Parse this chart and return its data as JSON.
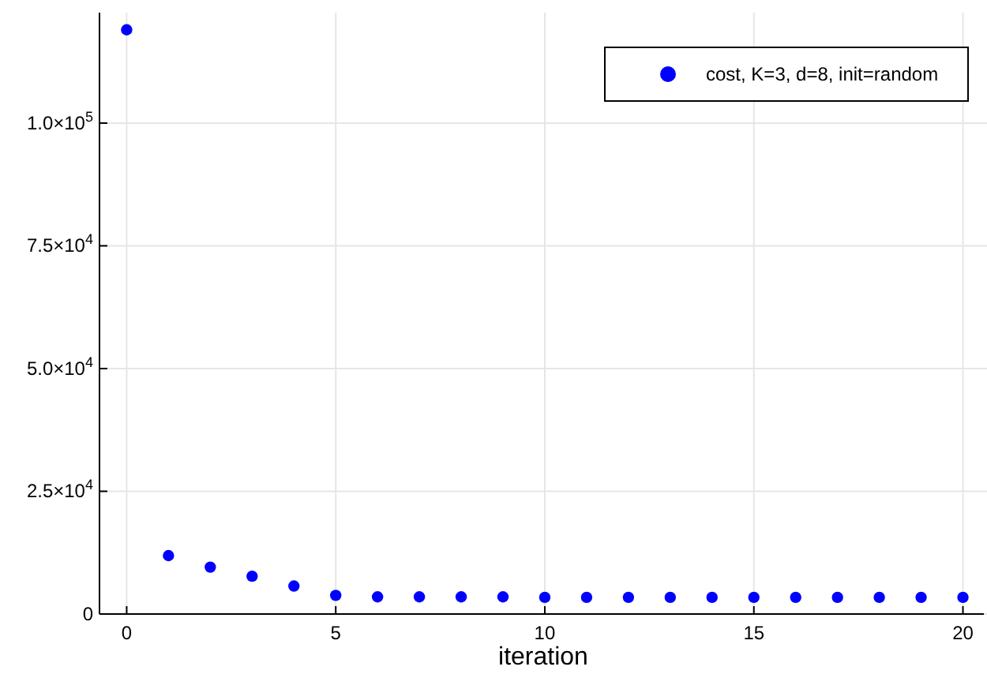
{
  "chart_data": {
    "type": "scatter",
    "xlabel": "iteration",
    "x": [
      0,
      1,
      2,
      3,
      4,
      5,
      6,
      7,
      8,
      9,
      10,
      11,
      12,
      13,
      14,
      15,
      16,
      17,
      18,
      19,
      20
    ],
    "series": [
      {
        "name": "cost, K=3, d=8, init=random",
        "color": "#0000ff",
        "values": [
          119000,
          11900,
          9550,
          7700,
          5700,
          3800,
          3500,
          3500,
          3500,
          3500,
          3400,
          3400,
          3400,
          3400,
          3400,
          3400,
          3400,
          3400,
          3400,
          3400,
          3400
        ]
      }
    ],
    "xlim": [
      -0.65,
      20.5
    ],
    "xticks": [
      0,
      5,
      10,
      15,
      20
    ],
    "ylim": [
      0,
      122500
    ],
    "yticks": [
      0,
      {
        "value": 25000,
        "label": "2.5×10$^{4}$"
      },
      {
        "value": 50000,
        "label": "5.0×10$^{4}$"
      },
      {
        "value": 75000,
        "label": "7.5×10$^{4}$"
      },
      {
        "value": 100000,
        "label": "1.0×10$^{5}$"
      }
    ],
    "grid": true,
    "legend": "top right",
    "marker": "circle"
  }
}
